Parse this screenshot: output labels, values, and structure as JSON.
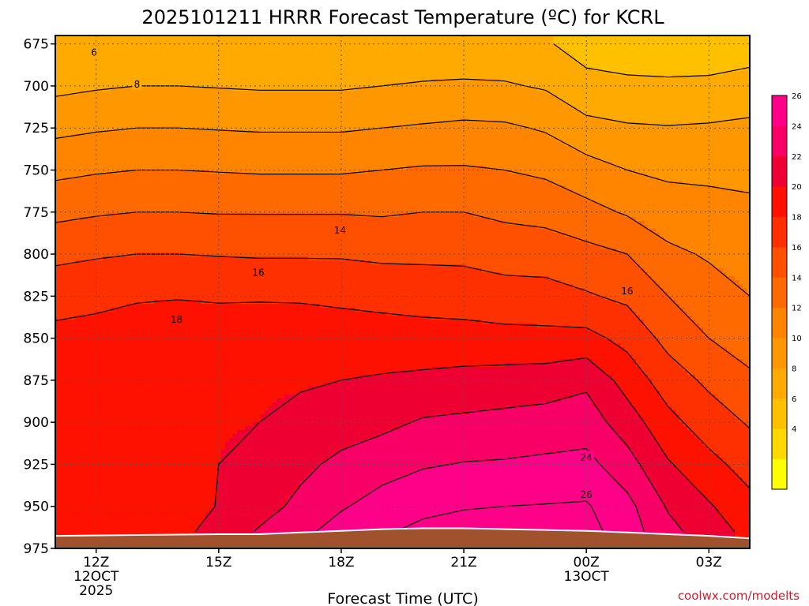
{
  "chart_data": {
    "type": "heatmap",
    "title": "2025101211 HRRR Forecast Temperature (ºC) for KCRL",
    "xlabel": "Forecast Time (UTC)",
    "ylabel": "",
    "credit": "coolwx.com/modelts",
    "y_scale": "pressure (reversed)",
    "ylim": [
      975,
      670
    ],
    "y_ticks": [
      675,
      700,
      725,
      750,
      775,
      800,
      825,
      850,
      875,
      900,
      925,
      950,
      975
    ],
    "xlim": [
      0,
      17
    ],
    "x_ticks": [
      {
        "x": 1,
        "lines": [
          "12Z",
          "12OCT",
          "2025"
        ]
      },
      {
        "x": 4,
        "lines": [
          "15Z"
        ]
      },
      {
        "x": 7,
        "lines": [
          "18Z"
        ]
      },
      {
        "x": 10,
        "lines": [
          "21Z"
        ]
      },
      {
        "x": 13,
        "lines": [
          "00Z",
          "13OCT"
        ]
      },
      {
        "x": 16,
        "lines": [
          "03Z"
        ]
      }
    ],
    "grid": true,
    "contour_interval": 2,
    "colorbar": {
      "levels": [
        2,
        4,
        6,
        8,
        10,
        12,
        14,
        16,
        18,
        20,
        22,
        24,
        26,
        28
      ],
      "tick_labels": [
        4,
        6,
        8,
        10,
        12,
        14,
        16,
        18,
        20,
        22,
        24,
        26
      ],
      "colors": [
        "#ffff00",
        "#ffd800",
        "#ffc000",
        "#ffaa00",
        "#ff9800",
        "#ff8400",
        "#ff6a00",
        "#ff5000",
        "#ff3000",
        "#ff1100",
        "#ee0033",
        "#f90066",
        "#ff0088"
      ]
    },
    "contour_labels": [
      {
        "value": "6",
        "x": 0.95,
        "p": 680
      },
      {
        "value": "8",
        "x": 2.0,
        "p": 699
      },
      {
        "value": "14",
        "x": 6.97,
        "p": 786
      },
      {
        "value": "16",
        "x": 4.97,
        "p": 811
      },
      {
        "value": "16",
        "x": 14.0,
        "p": 822
      },
      {
        "value": "18",
        "x": 2.97,
        "p": 839
      },
      {
        "value": "24",
        "x": 13.0,
        "p": 921
      },
      {
        "value": "26",
        "x": 13.0,
        "p": 943
      }
    ],
    "terrain": {
      "color": "#a0522d"
    },
    "series": [
      {
        "x": 0,
        "pressure": [
          675,
          700,
          725,
          750,
          775,
          800,
          825,
          850,
          875,
          900,
          925,
          950,
          965
        ],
        "temperature": [
          6.0,
          7.5,
          9.5,
          11.5,
          13.5,
          15.5,
          17.3,
          18.5,
          19.0,
          19.2,
          19.0,
          18.5,
          18.2
        ]
      },
      {
        "x": 1,
        "pressure": [
          675,
          700,
          725,
          750,
          775,
          800,
          825,
          850,
          875,
          900,
          925,
          950,
          965
        ],
        "temperature": [
          6.0,
          7.8,
          9.8,
          11.8,
          13.8,
          15.8,
          17.5,
          18.7,
          19.2,
          19.6,
          19.3,
          18.8,
          18.5
        ]
      },
      {
        "x": 2,
        "pressure": [
          675,
          700,
          725,
          750,
          775,
          800,
          825,
          850,
          875,
          900,
          925,
          950,
          965
        ],
        "temperature": [
          6.2,
          8.0,
          10.0,
          12.0,
          14.0,
          16.0,
          17.8,
          19.0,
          19.4,
          19.6,
          19.2,
          18.8,
          18.8
        ]
      },
      {
        "x": 3,
        "pressure": [
          675,
          700,
          725,
          750,
          775,
          800,
          825,
          850,
          875,
          900,
          925,
          950,
          965
        ],
        "temperature": [
          6.1,
          8.0,
          10.0,
          12.0,
          14.0,
          16.0,
          17.9,
          19.1,
          19.6,
          19.8,
          19.4,
          19.0,
          19.4
        ]
      },
      {
        "x": 4,
        "pressure": [
          675,
          700,
          725,
          750,
          775,
          800,
          825,
          850,
          875,
          900,
          925,
          950,
          965
        ],
        "temperature": [
          6.0,
          7.9,
          9.9,
          11.9,
          13.9,
          15.9,
          17.8,
          19.0,
          19.6,
          19.9,
          20.0,
          20.1,
          20.8
        ]
      },
      {
        "x": 5,
        "pressure": [
          675,
          700,
          725,
          750,
          775,
          800,
          825,
          850,
          875,
          900,
          925,
          950,
          965
        ],
        "temperature": [
          6.0,
          7.8,
          9.8,
          11.8,
          13.9,
          15.8,
          17.8,
          19.2,
          19.8,
          20.0,
          20.4,
          21.2,
          22.2
        ]
      },
      {
        "x": 6,
        "pressure": [
          675,
          700,
          725,
          750,
          775,
          800,
          825,
          850,
          875,
          900,
          925,
          950,
          965
        ],
        "temperature": [
          6.0,
          7.8,
          9.8,
          11.8,
          13.9,
          15.8,
          17.8,
          19.0,
          19.8,
          20.5,
          21.5,
          22.5,
          23.5
        ]
      },
      {
        "x": 7,
        "pressure": [
          675,
          700,
          725,
          750,
          775,
          800,
          825,
          850,
          875,
          900,
          925,
          950,
          965
        ],
        "temperature": [
          6.0,
          7.8,
          9.8,
          11.8,
          13.9,
          15.8,
          17.6,
          19.0,
          20.0,
          21.0,
          22.5,
          23.8,
          24.8
        ]
      },
      {
        "x": 8,
        "pressure": [
          675,
          700,
          725,
          750,
          775,
          800,
          825,
          850,
          875,
          900,
          925,
          950,
          965
        ],
        "temperature": [
          6.2,
          8.0,
          10.0,
          12.0,
          13.8,
          15.6,
          17.4,
          18.9,
          20.2,
          21.5,
          23.2,
          24.8,
          25.8
        ]
      },
      {
        "x": 9,
        "pressure": [
          675,
          700,
          725,
          750,
          775,
          800,
          825,
          850,
          875,
          900,
          925,
          950,
          965
        ],
        "temperature": [
          6.4,
          8.2,
          10.2,
          12.2,
          14.0,
          15.6,
          17.2,
          18.8,
          20.4,
          22.2,
          23.8,
          25.6,
          26.4
        ]
      },
      {
        "x": 10,
        "pressure": [
          675,
          700,
          725,
          750,
          775,
          800,
          825,
          850,
          875,
          900,
          925,
          950,
          965
        ],
        "temperature": [
          6.5,
          8.3,
          10.4,
          12.2,
          14.0,
          15.6,
          17.0,
          18.8,
          20.6,
          22.4,
          24.1,
          25.9,
          26.6
        ]
      },
      {
        "x": 11,
        "pressure": [
          675,
          700,
          725,
          750,
          775,
          800,
          825,
          850,
          875,
          900,
          925,
          950,
          965
        ],
        "temperature": [
          6.5,
          8.2,
          10.3,
          12.0,
          13.6,
          15.2,
          16.8,
          18.6,
          20.8,
          22.6,
          24.2,
          26.0,
          26.6
        ]
      },
      {
        "x": 12,
        "pressure": [
          675,
          700,
          725,
          750,
          775,
          800,
          825,
          850,
          875,
          900,
          925,
          950,
          965
        ],
        "temperature": [
          6.2,
          7.8,
          9.8,
          11.6,
          13.4,
          15.0,
          16.8,
          18.5,
          21.0,
          22.8,
          24.4,
          26.1,
          26.7
        ]
      },
      {
        "x": 13,
        "pressure": [
          675,
          700,
          725,
          750,
          775,
          800,
          825,
          850,
          875,
          900,
          925,
          950,
          965
        ],
        "temperature": [
          5.2,
          6.6,
          8.6,
          10.8,
          12.6,
          14.6,
          16.2,
          18.6,
          21.6,
          23.0,
          24.6,
          26.2,
          26.7
        ]
      },
      {
        "x": 14,
        "pressure": [
          675,
          700,
          725,
          750,
          775,
          800,
          825,
          850,
          875,
          900,
          925,
          950,
          965
        ],
        "temperature": [
          4.6,
          6.5,
          8.2,
          10.0,
          11.8,
          14.0,
          15.6,
          17.4,
          19.2,
          21.0,
          22.8,
          24.6,
          25.0
        ]
      },
      {
        "x": 15,
        "pressure": [
          675,
          700,
          725,
          750,
          775,
          800,
          825,
          850,
          875,
          900,
          925,
          950,
          965
        ],
        "temperature": [
          4.5,
          6.4,
          8.1,
          9.6,
          11.0,
          12.4,
          14.0,
          15.4,
          17.0,
          18.6,
          20.2,
          21.8,
          22.6
        ]
      },
      {
        "x": 16,
        "pressure": [
          675,
          700,
          725,
          750,
          775,
          800,
          825,
          850,
          875,
          900,
          925,
          950,
          965
        ],
        "temperature": [
          4.5,
          6.5,
          8.2,
          9.5,
          10.8,
          11.8,
          12.8,
          14.0,
          15.6,
          17.0,
          18.6,
          20.2,
          21.0
        ]
      },
      {
        "x": 17,
        "pressure": [
          675,
          700,
          725,
          750,
          775,
          800,
          825,
          850,
          875,
          900,
          925,
          950,
          965
        ],
        "temperature": [
          5.0,
          6.8,
          8.4,
          9.4,
          10.5,
          11.4,
          12.0,
          13.0,
          14.4,
          15.8,
          17.2,
          18.6,
          19.4
        ]
      }
    ],
    "surface_pressure": [
      {
        "x": 0,
        "p": 968
      },
      {
        "x": 2,
        "p": 967.5
      },
      {
        "x": 4,
        "p": 967
      },
      {
        "x": 5,
        "p": 967
      },
      {
        "x": 6,
        "p": 966
      },
      {
        "x": 7,
        "p": 965
      },
      {
        "x": 8,
        "p": 964
      },
      {
        "x": 9,
        "p": 963.5
      },
      {
        "x": 10,
        "p": 963.5
      },
      {
        "x": 11,
        "p": 964
      },
      {
        "x": 12,
        "p": 964.5
      },
      {
        "x": 13,
        "p": 965
      },
      {
        "x": 14,
        "p": 966
      },
      {
        "x": 15,
        "p": 967
      },
      {
        "x": 16,
        "p": 968
      },
      {
        "x": 17,
        "p": 969.5
      }
    ]
  }
}
